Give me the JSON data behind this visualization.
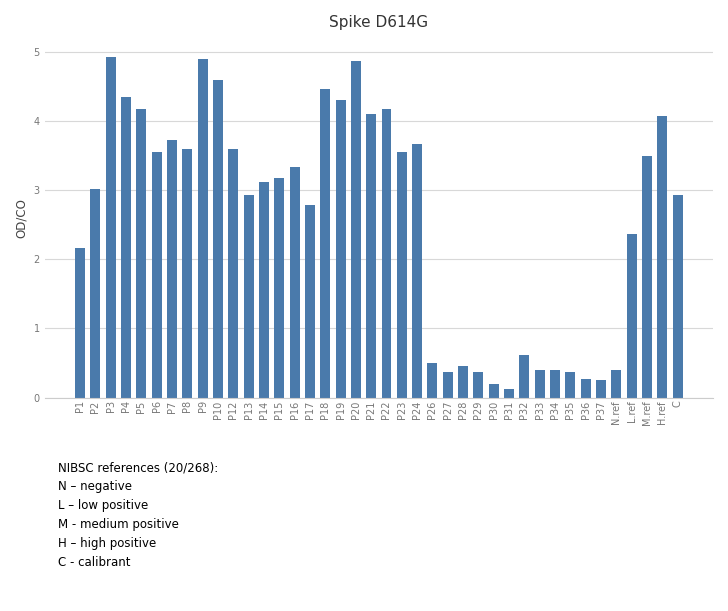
{
  "title": "Spike D614G",
  "ylabel": "OD/CO",
  "bar_color": "#4a7aab",
  "background_color": "#ffffff",
  "ylim": [
    0,
    5.2
  ],
  "yticks": [
    0,
    1,
    2,
    3,
    4,
    5
  ],
  "categories": [
    "P1",
    "P2",
    "P3",
    "P4",
    "P5",
    "P6",
    "P7",
    "P8",
    "P9",
    "P10",
    "P12",
    "P13",
    "P14",
    "P15",
    "P16",
    "P17",
    "P18",
    "P19",
    "P20",
    "P21",
    "P22",
    "P23",
    "P24",
    "P26",
    "P27",
    "P28",
    "P29",
    "P30",
    "P31",
    "P32",
    "P33",
    "P34",
    "P35",
    "P36",
    "P37",
    "N.ref",
    "L.ref",
    "M.ref",
    "H.ref",
    "C"
  ],
  "values": [
    2.17,
    3.02,
    4.93,
    4.35,
    4.17,
    3.55,
    3.72,
    3.6,
    4.9,
    4.6,
    3.6,
    2.93,
    3.12,
    3.17,
    3.33,
    2.78,
    4.47,
    4.3,
    4.87,
    4.1,
    4.17,
    3.55,
    3.67,
    0.5,
    0.37,
    0.45,
    0.37,
    0.2,
    0.13,
    0.62,
    0.4,
    0.4,
    0.37,
    0.27,
    0.25,
    0.4,
    2.37,
    3.5,
    4.07,
    2.93
  ],
  "annotation_text": "NIBSC references (20/268):\nN – negative\nL – low positive\nM - medium positive\nH – high positive\nC - calibrant",
  "grid_color": "#d8d8d8",
  "title_fontsize": 11,
  "axis_fontsize": 8.5,
  "tick_fontsize": 7,
  "annotation_fontsize": 8.5
}
